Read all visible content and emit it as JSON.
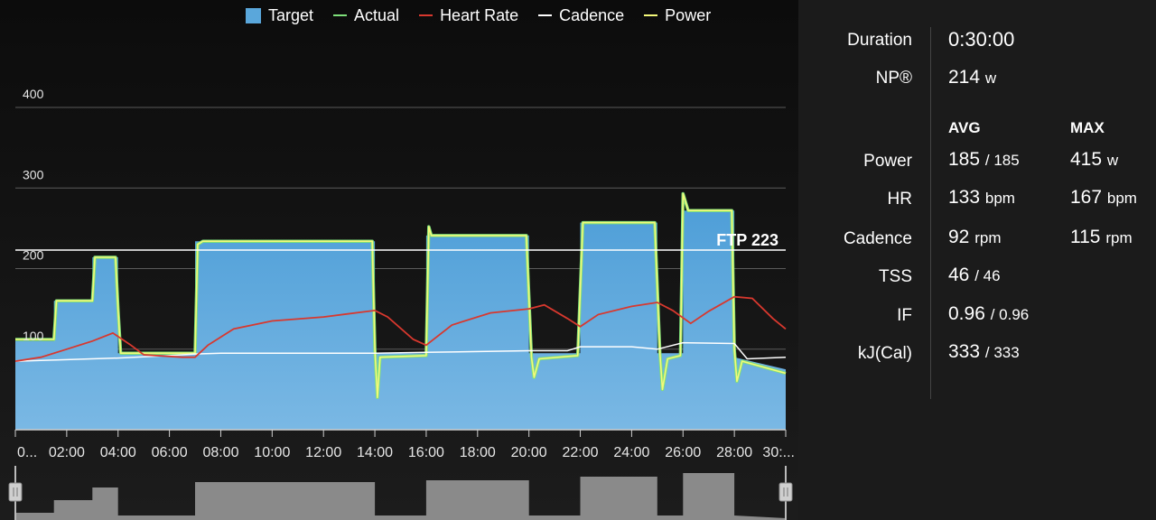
{
  "legend": [
    {
      "label": "Target",
      "color": "#5aa7db",
      "kind": "box"
    },
    {
      "label": "Actual",
      "color": "#7ee07a",
      "kind": "line"
    },
    {
      "label": "Heart Rate",
      "color": "#d8382e",
      "kind": "line"
    },
    {
      "label": "Cadence",
      "color": "#ffffff",
      "kind": "line"
    },
    {
      "label": "Power",
      "color": "#f4f97a",
      "kind": "line"
    }
  ],
  "ftp_label": "FTP 223",
  "stats": {
    "duration": {
      "label": "Duration",
      "value": "0:30:00"
    },
    "np": {
      "label": "NP®",
      "value": "214",
      "unit": "w"
    },
    "headers": {
      "avg": "AVG",
      "max": "MAX"
    },
    "rows": [
      {
        "label": "Power",
        "avg": "185",
        "avg_sub": "/ 185",
        "max": "415",
        "max_unit": "w"
      },
      {
        "label": "HR",
        "avg": "133",
        "avg_sub": "bpm",
        "max": "167",
        "max_unit": "bpm"
      },
      {
        "label": "Cadence",
        "avg": "92",
        "avg_sub": "rpm",
        "max": "115",
        "max_unit": "rpm"
      },
      {
        "label": "TSS",
        "avg": "46",
        "avg_sub": "/ 46",
        "max": "",
        "max_unit": ""
      },
      {
        "label": "IF",
        "avg": "0.96",
        "avg_sub": "/ 0.96",
        "max": "",
        "max_unit": ""
      },
      {
        "label": "kJ(Cal)",
        "avg": "333",
        "avg_sub": "/ 333",
        "max": "",
        "max_unit": ""
      }
    ]
  },
  "chart_data": {
    "type": "area",
    "x_unit": "minutes",
    "xlim": [
      0,
      30
    ],
    "ylim": [
      0,
      400
    ],
    "y_ticks": [
      "100",
      "200",
      "300",
      "400"
    ],
    "x_tick_labels": [
      "0...",
      "02:00",
      "04:00",
      "06:00",
      "08:00",
      "10:00",
      "12:00",
      "14:00",
      "16:00",
      "18:00",
      "20:00",
      "22:00",
      "24:00",
      "26:00",
      "28:00",
      "30:..."
    ],
    "ftp": 223,
    "colors": {
      "target": "#5aa7db",
      "actual": "#7ee07a",
      "power": "#f4f97a",
      "heart_rate": "#d8382e",
      "cadence": "#ffffff",
      "grid": "#5a5a5a"
    },
    "target": [
      [
        0,
        110
      ],
      [
        1.5,
        110
      ],
      [
        1.5,
        160
      ],
      [
        3.0,
        160
      ],
      [
        3.0,
        214
      ],
      [
        4.0,
        214
      ],
      [
        4.0,
        95
      ],
      [
        7.0,
        95
      ],
      [
        7.0,
        234
      ],
      [
        14.0,
        234
      ],
      [
        14.0,
        95
      ],
      [
        16.0,
        95
      ],
      [
        16.0,
        241
      ],
      [
        20.0,
        241
      ],
      [
        20.0,
        95
      ],
      [
        22.0,
        95
      ],
      [
        22.0,
        257
      ],
      [
        25.0,
        257
      ],
      [
        25.0,
        95
      ],
      [
        26.0,
        95
      ],
      [
        26.0,
        272
      ],
      [
        28.0,
        272
      ],
      [
        28.0,
        90
      ],
      [
        30.0,
        75
      ]
    ],
    "power": [
      [
        0,
        112
      ],
      [
        1.5,
        112
      ],
      [
        1.6,
        160
      ],
      [
        3.0,
        160
      ],
      [
        3.1,
        214
      ],
      [
        3.9,
        214
      ],
      [
        4.0,
        150
      ],
      [
        4.1,
        95
      ],
      [
        7.0,
        95
      ],
      [
        7.1,
        230
      ],
      [
        7.3,
        234
      ],
      [
        13.9,
        234
      ],
      [
        14.0,
        100
      ],
      [
        14.1,
        40
      ],
      [
        14.2,
        90
      ],
      [
        16.0,
        92
      ],
      [
        16.1,
        252
      ],
      [
        16.2,
        241
      ],
      [
        19.9,
        241
      ],
      [
        20.1,
        90
      ],
      [
        20.2,
        65
      ],
      [
        20.4,
        88
      ],
      [
        21.9,
        92
      ],
      [
        22.1,
        257
      ],
      [
        24.9,
        257
      ],
      [
        25.1,
        95
      ],
      [
        25.2,
        50
      ],
      [
        25.4,
        88
      ],
      [
        25.9,
        92
      ],
      [
        26.0,
        293
      ],
      [
        26.2,
        272
      ],
      [
        27.9,
        272
      ],
      [
        28.0,
        100
      ],
      [
        28.1,
        60
      ],
      [
        28.3,
        85
      ],
      [
        30.0,
        70
      ]
    ],
    "heart_rate": [
      [
        0,
        85
      ],
      [
        1.0,
        90
      ],
      [
        2.0,
        100
      ],
      [
        3.0,
        110
      ],
      [
        3.8,
        120
      ],
      [
        4.5,
        105
      ],
      [
        5.0,
        93
      ],
      [
        6.5,
        90
      ],
      [
        7.0,
        90
      ],
      [
        7.5,
        105
      ],
      [
        8.5,
        125
      ],
      [
        10.0,
        135
      ],
      [
        12.0,
        140
      ],
      [
        14.0,
        148
      ],
      [
        14.5,
        140
      ],
      [
        15.5,
        112
      ],
      [
        16.0,
        105
      ],
      [
        17.0,
        130
      ],
      [
        18.5,
        145
      ],
      [
        20.0,
        150
      ],
      [
        20.6,
        155
      ],
      [
        21.5,
        138
      ],
      [
        22.0,
        128
      ],
      [
        22.7,
        143
      ],
      [
        24.0,
        153
      ],
      [
        25.0,
        158
      ],
      [
        25.6,
        148
      ],
      [
        26.3,
        132
      ],
      [
        27.0,
        147
      ],
      [
        28.0,
        165
      ],
      [
        28.7,
        163
      ],
      [
        29.5,
        138
      ],
      [
        30.0,
        125
      ]
    ],
    "cadence": [
      [
        0,
        85
      ],
      [
        2.0,
        87
      ],
      [
        4.0,
        89
      ],
      [
        6.0,
        92
      ],
      [
        7.0,
        94
      ],
      [
        8.0,
        95
      ],
      [
        10.0,
        95
      ],
      [
        13.0,
        95
      ],
      [
        14.0,
        95
      ],
      [
        16.0,
        96
      ],
      [
        20.0,
        98
      ],
      [
        21.5,
        98
      ],
      [
        22.0,
        103
      ],
      [
        24.0,
        103
      ],
      [
        25.0,
        100
      ],
      [
        26.0,
        108
      ],
      [
        28.0,
        107
      ],
      [
        28.5,
        88
      ],
      [
        30.0,
        90
      ]
    ]
  },
  "navigator": {
    "fill": "#8a8a8a",
    "profile": [
      [
        0,
        8
      ],
      [
        1.5,
        8
      ],
      [
        1.5,
        22
      ],
      [
        3.0,
        22
      ],
      [
        3.0,
        36
      ],
      [
        4.0,
        36
      ],
      [
        4.0,
        5
      ],
      [
        7.0,
        5
      ],
      [
        7.0,
        42
      ],
      [
        14.0,
        42
      ],
      [
        14.0,
        5
      ],
      [
        16.0,
        5
      ],
      [
        16.0,
        44
      ],
      [
        20.0,
        44
      ],
      [
        20.0,
        5
      ],
      [
        22.0,
        5
      ],
      [
        22.0,
        48
      ],
      [
        25.0,
        48
      ],
      [
        25.0,
        5
      ],
      [
        26.0,
        5
      ],
      [
        26.0,
        52
      ],
      [
        28.0,
        52
      ],
      [
        28.0,
        5
      ],
      [
        30.0,
        2
      ]
    ]
  }
}
